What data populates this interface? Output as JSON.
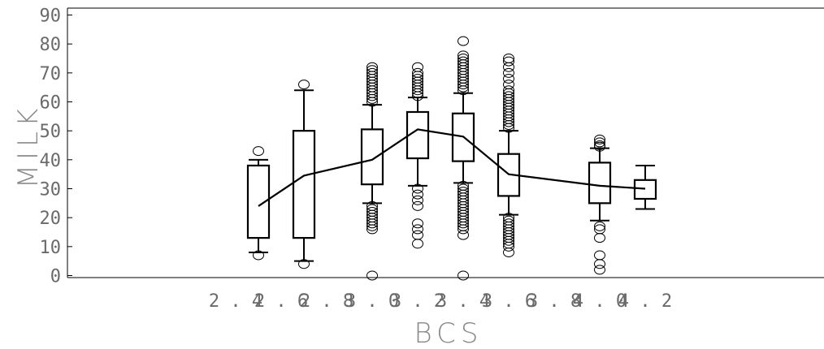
{
  "chart_data": {
    "type": "box",
    "xlabel": "BCS",
    "ylabel": "MILK",
    "ylim": [
      0,
      90
    ],
    "xlim": [
      1.3,
      5.3
    ],
    "grid": false,
    "x_ticks": [
      "2.4",
      "2.6",
      "2.8",
      "3.0",
      "3.2",
      "3.4",
      "3.6",
      "3.8",
      "4.0",
      "4.2"
    ],
    "y_ticks": [
      0,
      10,
      20,
      30,
      40,
      50,
      60,
      70,
      80,
      90
    ],
    "boxes": [
      {
        "x": 2.5,
        "whisker_low": 8,
        "q1": 13,
        "q3": 38,
        "whisker_high": 40,
        "mean": 24,
        "outliers": [
          7,
          43
        ]
      },
      {
        "x": 2.7,
        "whisker_low": 5,
        "q1": 13,
        "q3": 50,
        "whisker_high": 64,
        "mean": 34.5,
        "outliers": [
          4,
          66
        ]
      },
      {
        "x": 3.0,
        "whisker_low": 25,
        "q1": 31.5,
        "q3": 50.5,
        "whisker_high": 59,
        "mean": 40,
        "outliers": [
          0,
          16,
          17,
          18,
          19,
          20,
          21,
          22,
          23,
          24,
          60,
          61,
          62,
          63,
          64,
          65,
          66,
          67,
          68,
          69,
          70,
          71,
          72
        ]
      },
      {
        "x": 3.2,
        "whisker_low": 31,
        "q1": 40.5,
        "q3": 56.5,
        "whisker_high": 61.5,
        "mean": 50.5,
        "outliers": [
          11,
          14,
          16,
          18,
          24,
          26,
          28,
          30,
          62,
          63,
          64,
          65,
          66,
          67,
          68,
          69,
          70,
          72
        ]
      },
      {
        "x": 3.4,
        "whisker_low": 32,
        "q1": 39.5,
        "q3": 56,
        "whisker_high": 63,
        "mean": 48,
        "outliers": [
          0,
          14,
          16,
          17,
          18,
          19,
          20,
          21,
          22,
          23,
          24,
          25,
          26,
          27,
          28,
          29,
          30,
          31,
          64,
          65,
          66,
          67,
          68,
          69,
          70,
          71,
          72,
          73,
          74,
          75,
          76,
          81
        ]
      },
      {
        "x": 3.6,
        "whisker_low": 21,
        "q1": 27.5,
        "q3": 42,
        "whisker_high": 50,
        "mean": 35,
        "outliers": [
          8,
          10,
          11,
          12,
          13,
          14,
          15,
          16,
          17,
          18,
          19,
          20,
          51,
          52,
          53,
          54,
          55,
          56,
          57,
          58,
          59,
          60,
          61,
          62,
          63,
          64,
          66,
          68,
          70,
          72,
          74,
          75
        ]
      },
      {
        "x": 4.0,
        "whisker_low": 19,
        "q1": 25,
        "q3": 39,
        "whisker_high": 44,
        "mean": 31,
        "outliers": [
          2,
          4,
          7,
          13,
          16,
          17,
          44.5,
          45,
          46,
          47
        ]
      },
      {
        "x": 4.2,
        "whisker_low": 23,
        "q1": 26.5,
        "q3": 33,
        "whisker_high": 38,
        "mean": 30,
        "outliers": []
      }
    ]
  }
}
